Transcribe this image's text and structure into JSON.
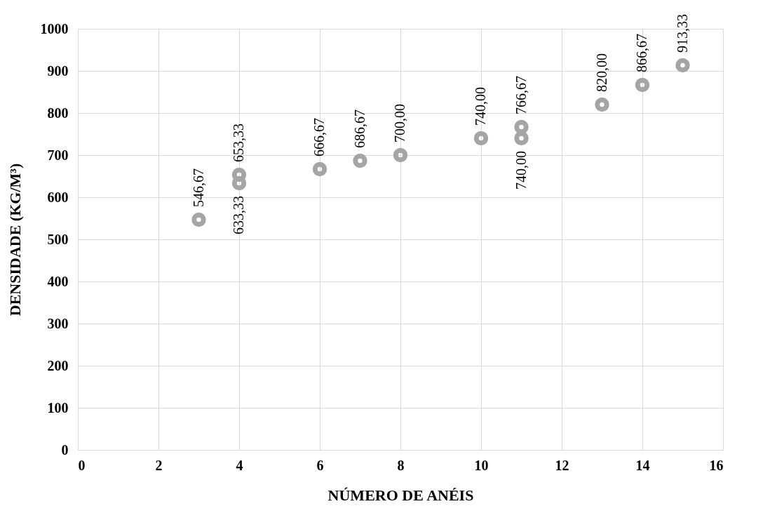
{
  "chart_data": {
    "type": "scatter",
    "xlabel": "NÚMERO DE ANÉIS",
    "ylabel": "DENSIDADE (KG/M³)",
    "x": [
      3,
      4,
      4,
      6,
      7,
      8,
      10,
      11,
      11,
      13,
      14,
      15
    ],
    "series": [
      {
        "color": "#a5a5a5",
        "values": [
          546.67,
          653.33,
          633.33,
          666.67,
          686.67,
          700,
          740,
          766.67,
          740,
          820,
          866.67,
          913.33
        ],
        "value_labels": [
          "546,67",
          "653,33",
          "633,33",
          "666,67",
          "686,67",
          "700,00",
          "740,00",
          "766,67",
          "740,00",
          "820,00",
          "866,67",
          "913,33"
        ]
      }
    ],
    "xlim": [
      0,
      16
    ],
    "xticks": [
      0,
      2,
      4,
      6,
      8,
      10,
      12,
      14,
      16
    ],
    "ylim": [
      0,
      1000
    ],
    "yticks": [
      0,
      100,
      200,
      300,
      400,
      500,
      600,
      700,
      800,
      900,
      1000
    ],
    "grid": true,
    "marker": "circle"
  }
}
